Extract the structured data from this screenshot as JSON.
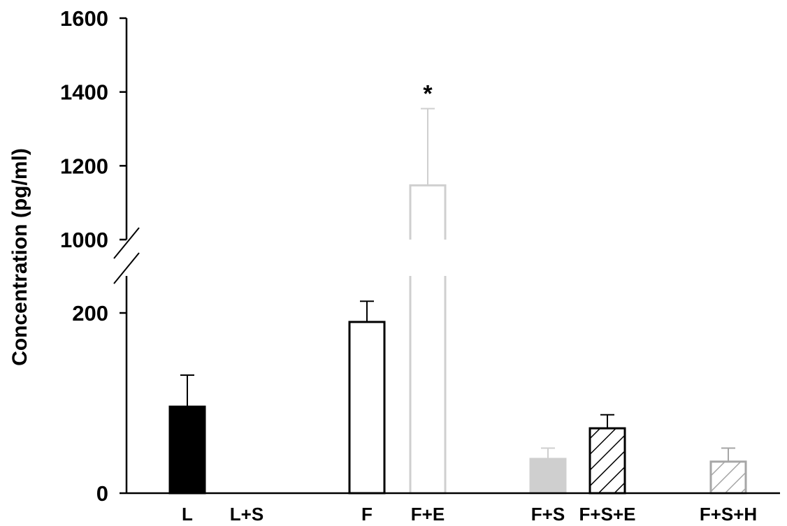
{
  "chart_data": {
    "type": "bar",
    "title": "",
    "xlabel": "",
    "ylabel": "Concentration (pg/ml)",
    "axis_break": {
      "lower_segment": [
        0,
        250
      ],
      "upper_segment": [
        1000,
        1600
      ]
    },
    "y_ticks": [
      "0",
      "200",
      "1000",
      "1200",
      "1400",
      "1600"
    ],
    "categories": [
      "L",
      "L+S",
      "F",
      "F+E",
      "F+S",
      "F+S+E",
      "F+S+H"
    ],
    "values": [
      96,
      0,
      190,
      1147,
      38,
      72,
      35
    ],
    "errors": [
      35,
      0,
      23,
      208,
      12,
      15,
      15
    ],
    "colors": [
      "#000000",
      "#000000",
      "#000000",
      "#cfcfcf",
      "#cfcfcf",
      "#000000",
      "#a6a6a6"
    ],
    "fills": [
      "solid",
      "none",
      "empty",
      "empty",
      "solid",
      "hatched",
      "hatched"
    ],
    "annotations": [
      {
        "category": "F+E",
        "text": "*"
      }
    ]
  }
}
